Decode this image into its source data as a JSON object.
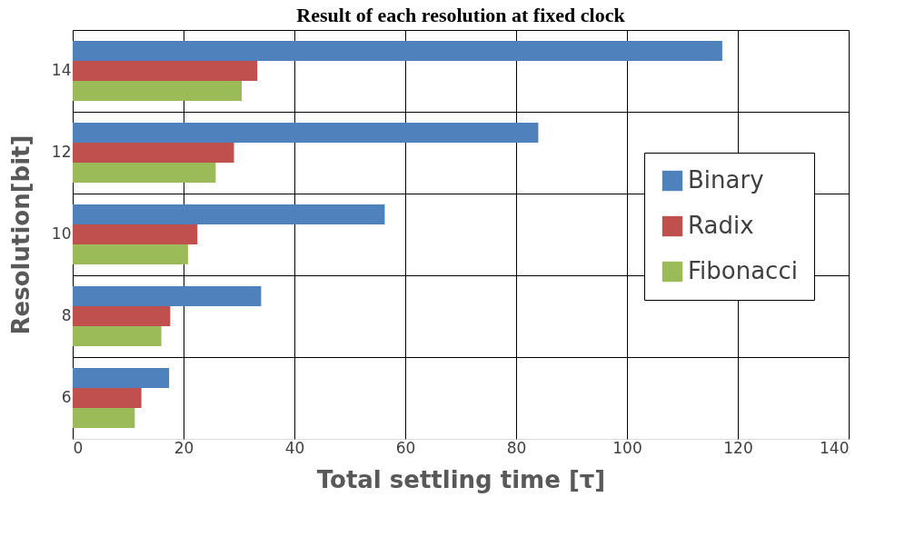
{
  "chart_data": {
    "type": "bar",
    "orientation": "horizontal",
    "title": "Result of each resolution at fixed clock",
    "xlabel": "Total settling time [τ]",
    "ylabel": "Resolution[bit]",
    "categories": [
      "14",
      "12",
      "10",
      "8",
      "6"
    ],
    "series": [
      {
        "name": "Binary",
        "color": "#4f81bd",
        "values": [
          117.2,
          84,
          56.3,
          34,
          17.4
        ]
      },
      {
        "name": "Radix",
        "color": "#c0504d",
        "values": [
          33.3,
          29.1,
          22.5,
          17.6,
          12.4
        ]
      },
      {
        "name": "Fibonacci",
        "color": "#9bbb59",
        "values": [
          30.5,
          25.8,
          20.8,
          16,
          11.2
        ]
      }
    ],
    "xlim": [
      0,
      140
    ],
    "xticks": [
      0,
      20,
      40,
      60,
      80,
      100,
      120,
      140
    ],
    "grid": true,
    "legend": "right"
  }
}
